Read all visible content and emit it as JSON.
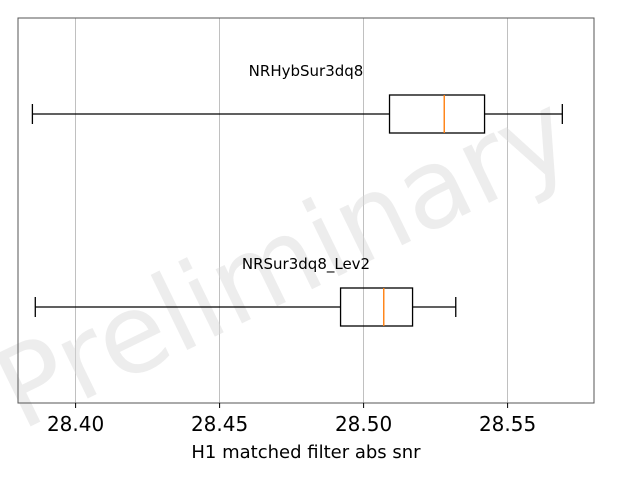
{
  "chart_data": {
    "type": "boxplot",
    "orientation": "horizontal",
    "xlabel": "H1 matched filter abs snr",
    "xlim": [
      28.38,
      28.58
    ],
    "xticks": [
      28.4,
      28.45,
      28.5,
      28.55
    ],
    "xtick_labels": [
      "28.40",
      "28.45",
      "28.50",
      "28.55"
    ],
    "grid": "x",
    "watermark": "Preliminary",
    "colors": {
      "box": "#000000",
      "median": "#ff7f0e",
      "grid": "#b0b0b0",
      "watermark": "#d9d9d9"
    },
    "series": [
      {
        "name": "NRHybSur3dq8",
        "whisker_low": 28.385,
        "q1": 28.509,
        "median": 28.528,
        "q3": 28.542,
        "whisker_high": 28.569
      },
      {
        "name": "NRSur3dq8_Lev2",
        "whisker_low": 28.386,
        "q1": 28.492,
        "median": 28.507,
        "q3": 28.517,
        "whisker_high": 28.532
      }
    ]
  }
}
